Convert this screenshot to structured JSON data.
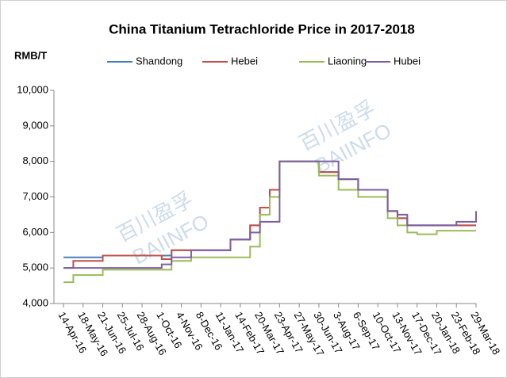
{
  "chart_data": {
    "type": "line",
    "step": true,
    "title": "China Titanium Tetrachloride Price in 2017-2018",
    "y_label": "RMB/T",
    "watermark": [
      "百川盈孚",
      "BAIINFO"
    ],
    "legend": "top",
    "grid": false,
    "categories": [
      "14-Apr-16",
      null,
      "18-May-16",
      null,
      "21-Jun-16",
      null,
      "25-Jul-16",
      null,
      "28-Aug-16",
      null,
      "1-Oct-16",
      null,
      "4-Nov-16",
      null,
      "8-Dec-16",
      null,
      "11-Jan-17",
      null,
      "14-Feb-17",
      null,
      "20-Mar-17",
      null,
      "23-Apr-17",
      null,
      "27-May-17",
      null,
      "30-Jun-17",
      null,
      "3-Aug-17",
      null,
      "6-Sep-17",
      null,
      "10-Oct-17",
      null,
      "13-Nov-17",
      null,
      "17-Dec-17",
      null,
      "20-Jan-18",
      null,
      "23-Feb-18",
      null,
      "29-Mar-18"
    ],
    "ylim": [
      4000,
      10000
    ],
    "yticks": [
      {
        "value": 4000,
        "label": "4,000"
      },
      {
        "value": 5000,
        "label": "5,000"
      },
      {
        "value": 6000,
        "label": "6,000"
      },
      {
        "value": 7000,
        "label": "7,000"
      },
      {
        "value": 8000,
        "label": "8,000"
      },
      {
        "value": 9000,
        "label": "9,000"
      },
      {
        "value": 10000,
        "label": "10,000"
      }
    ],
    "series": [
      {
        "name": "Shandong",
        "color": "#4a7ebb",
        "values": [
          5300,
          5300,
          5300,
          5300,
          5350,
          5350,
          5350,
          5350,
          5350,
          5350,
          5350,
          5500,
          5500,
          5500,
          5500,
          5500,
          5500,
          5800,
          5800,
          6200,
          6700,
          7200,
          8000,
          8000,
          8000,
          8000,
          7700,
          7700,
          7500,
          7500,
          7200,
          7200,
          7200,
          6600,
          6400,
          6200,
          6200,
          6200,
          6200,
          6200,
          6200,
          6200,
          6200
        ]
      },
      {
        "name": "Hebei",
        "color": "#c0504d",
        "values": [
          5000,
          5200,
          5200,
          5200,
          5350,
          5350,
          5350,
          5350,
          5350,
          5350,
          5250,
          5500,
          5500,
          5500,
          5500,
          5500,
          5500,
          5800,
          5800,
          6200,
          6700,
          7200,
          8000,
          8000,
          8000,
          8000,
          7700,
          7700,
          7500,
          7500,
          7200,
          7200,
          7200,
          6600,
          6400,
          6200,
          6200,
          6200,
          6200,
          6200,
          6200,
          6200,
          6200
        ]
      },
      {
        "name": "Liaoning",
        "color": "#9bbb59",
        "values": [
          4600,
          4800,
          4800,
          4800,
          4950,
          4950,
          4950,
          4950,
          4950,
          4950,
          4950,
          5200,
          5200,
          5300,
          5300,
          5300,
          5300,
          5300,
          5300,
          5600,
          6500,
          7000,
          8000,
          8000,
          8000,
          8000,
          7600,
          7600,
          7200,
          7200,
          7000,
          7000,
          7000,
          6400,
          6200,
          6000,
          5950,
          5950,
          6050,
          6050,
          6050,
          6050,
          6050
        ]
      },
      {
        "name": "Hubei",
        "color": "#7d60a0",
        "values": [
          5000,
          5000,
          5000,
          5000,
          5000,
          5000,
          5000,
          5000,
          5000,
          5000,
          5100,
          5300,
          5300,
          5500,
          5500,
          5500,
          5500,
          5800,
          5800,
          6000,
          6300,
          6300,
          8000,
          8000,
          8000,
          8000,
          8000,
          8000,
          7500,
          7500,
          7200,
          7200,
          7200,
          6600,
          6500,
          6200,
          6200,
          6200,
          6200,
          6200,
          6300,
          6300,
          6600
        ]
      }
    ]
  }
}
